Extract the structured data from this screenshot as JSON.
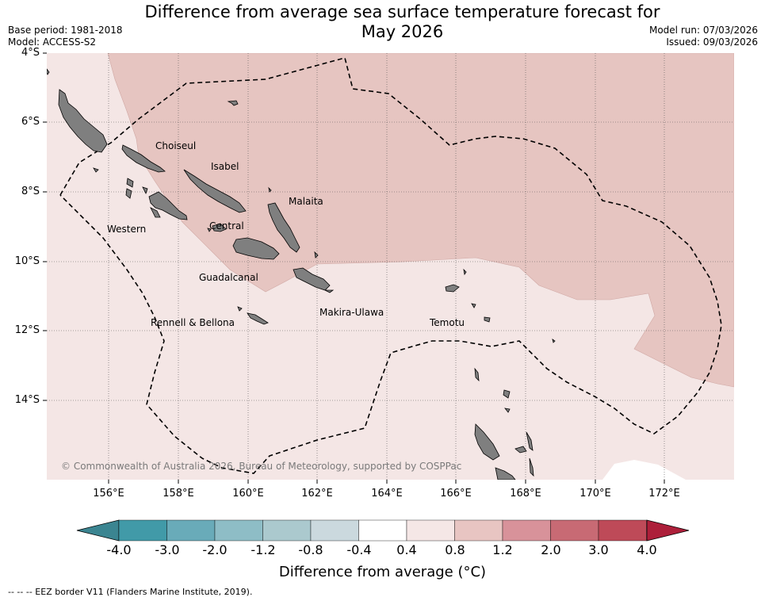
{
  "title": {
    "line1": "Difference from average sea surface temperature forecast for",
    "line2": "May 2026"
  },
  "meta": {
    "base_period": "Base period: 1981-2018",
    "model": "Model: ACCESS-S2",
    "model_run": "Model run: 07/03/2026",
    "issued": "Issued: 09/03/2026"
  },
  "map": {
    "lat_ticks": [
      "4°S",
      "6°S",
      "8°S",
      "10°S",
      "12°S",
      "14°S"
    ],
    "lon_ticks": [
      "156°E",
      "158°E",
      "160°E",
      "162°E",
      "164°E",
      "166°E",
      "168°E",
      "170°E",
      "172°E"
    ],
    "province_labels": {
      "choiseul": "Choiseul",
      "isabel": "Isabel",
      "malaita": "Malaita",
      "western": "Western",
      "central": "Central",
      "guadalcanal": "Guadalcanal",
      "makira": "Makira-Ulawa",
      "rennell": "Rennell & Bellona",
      "temotu": "Temotu"
    },
    "copyright": "© Commonwealth of Australia 2026, Bureau of Meteorology, supported by COSPPac",
    "colors": {
      "anomaly_0_4_to_0_8": "#f4e6e5",
      "anomaly_0_8_to_1_2": "#e6c5c1",
      "land": "#7f7f7f",
      "no_data": "#ffffff"
    }
  },
  "colorbar": {
    "ticks": [
      "-4.0",
      "-3.0",
      "-2.0",
      "-1.2",
      "-0.8",
      "-0.4",
      "0.4",
      "0.8",
      "1.2",
      "2.0",
      "3.0",
      "4.0"
    ],
    "colors": [
      "#419aa8",
      "#69abb9",
      "#8ebdc6",
      "#abc9ce",
      "#cbd9de",
      "#ffffff",
      "#f5e7e6",
      "#e8c5c2",
      "#d8929a",
      "#c86a74",
      "#be4a58"
    ],
    "extend_low_color": "#3b8591",
    "extend_high_color": "#ad1f3a",
    "label": "Difference from average (°C)"
  },
  "footnote": "--  --  -- EEZ border V11 (Flanders Marine Institute, 2019)."
}
